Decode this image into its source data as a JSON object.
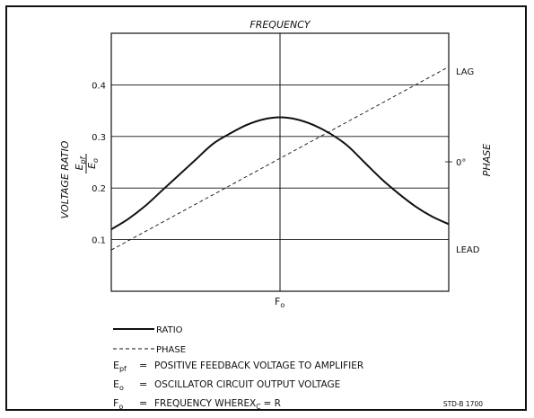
{
  "chart_data": {
    "type": "line",
    "top_label": "FREQUENCY",
    "ylabel_left": "VOLTAGE RATIO",
    "ylabel_fraction_numerator": "E",
    "ylabel_fraction_numerator_sub": "pf",
    "ylabel_fraction_denominator": "E",
    "ylabel_fraction_denominator_sub": "o",
    "ylabel_right": "PHASE",
    "left_ticks": [
      "0.4",
      "0.3",
      "0.2",
      "0.1"
    ],
    "right_ticks": [
      "LAG",
      "0°",
      "LEAD"
    ],
    "x_center_label_main": "F",
    "x_center_label_sub": "o",
    "ylim": [
      0,
      0.5
    ],
    "series": [
      {
        "name": "RATIO",
        "x": [
          -1.0,
          -0.9,
          -0.8,
          -0.7,
          -0.6,
          -0.5,
          -0.4,
          -0.3,
          -0.2,
          -0.1,
          0.0,
          0.1,
          0.2,
          0.3,
          0.4,
          0.5,
          0.6,
          0.7,
          0.8,
          0.9,
          1.0
        ],
        "values": [
          0.12,
          0.14,
          0.165,
          0.195,
          0.225,
          0.255,
          0.285,
          0.305,
          0.322,
          0.333,
          0.337,
          0.333,
          0.322,
          0.305,
          0.282,
          0.25,
          0.218,
          0.19,
          0.165,
          0.145,
          0.13
        ]
      },
      {
        "name": "PHASE",
        "x": [
          -1.0,
          1.0
        ],
        "values": [
          0.08,
          0.435
        ]
      }
    ]
  },
  "legend": {
    "ratio_label": "RATIO",
    "phase_label": "PHASE"
  },
  "definitions": [
    {
      "symbol": "E",
      "sub": "pf",
      "eq": "=",
      "text": "POSITIVE FEEDBACK VOLTAGE TO AMPLIFIER"
    },
    {
      "symbol": "E",
      "sub": "o",
      "eq": "=",
      "text": "OSCILLATOR CIRCUIT OUTPUT VOLTAGE"
    },
    {
      "symbol": "F",
      "sub": "o",
      "eq": "=",
      "text": "FREQUENCY WHERE",
      "text2": "X",
      "text2_sub": "C",
      "text3": "= R"
    }
  ],
  "code": "STD-B 1700"
}
